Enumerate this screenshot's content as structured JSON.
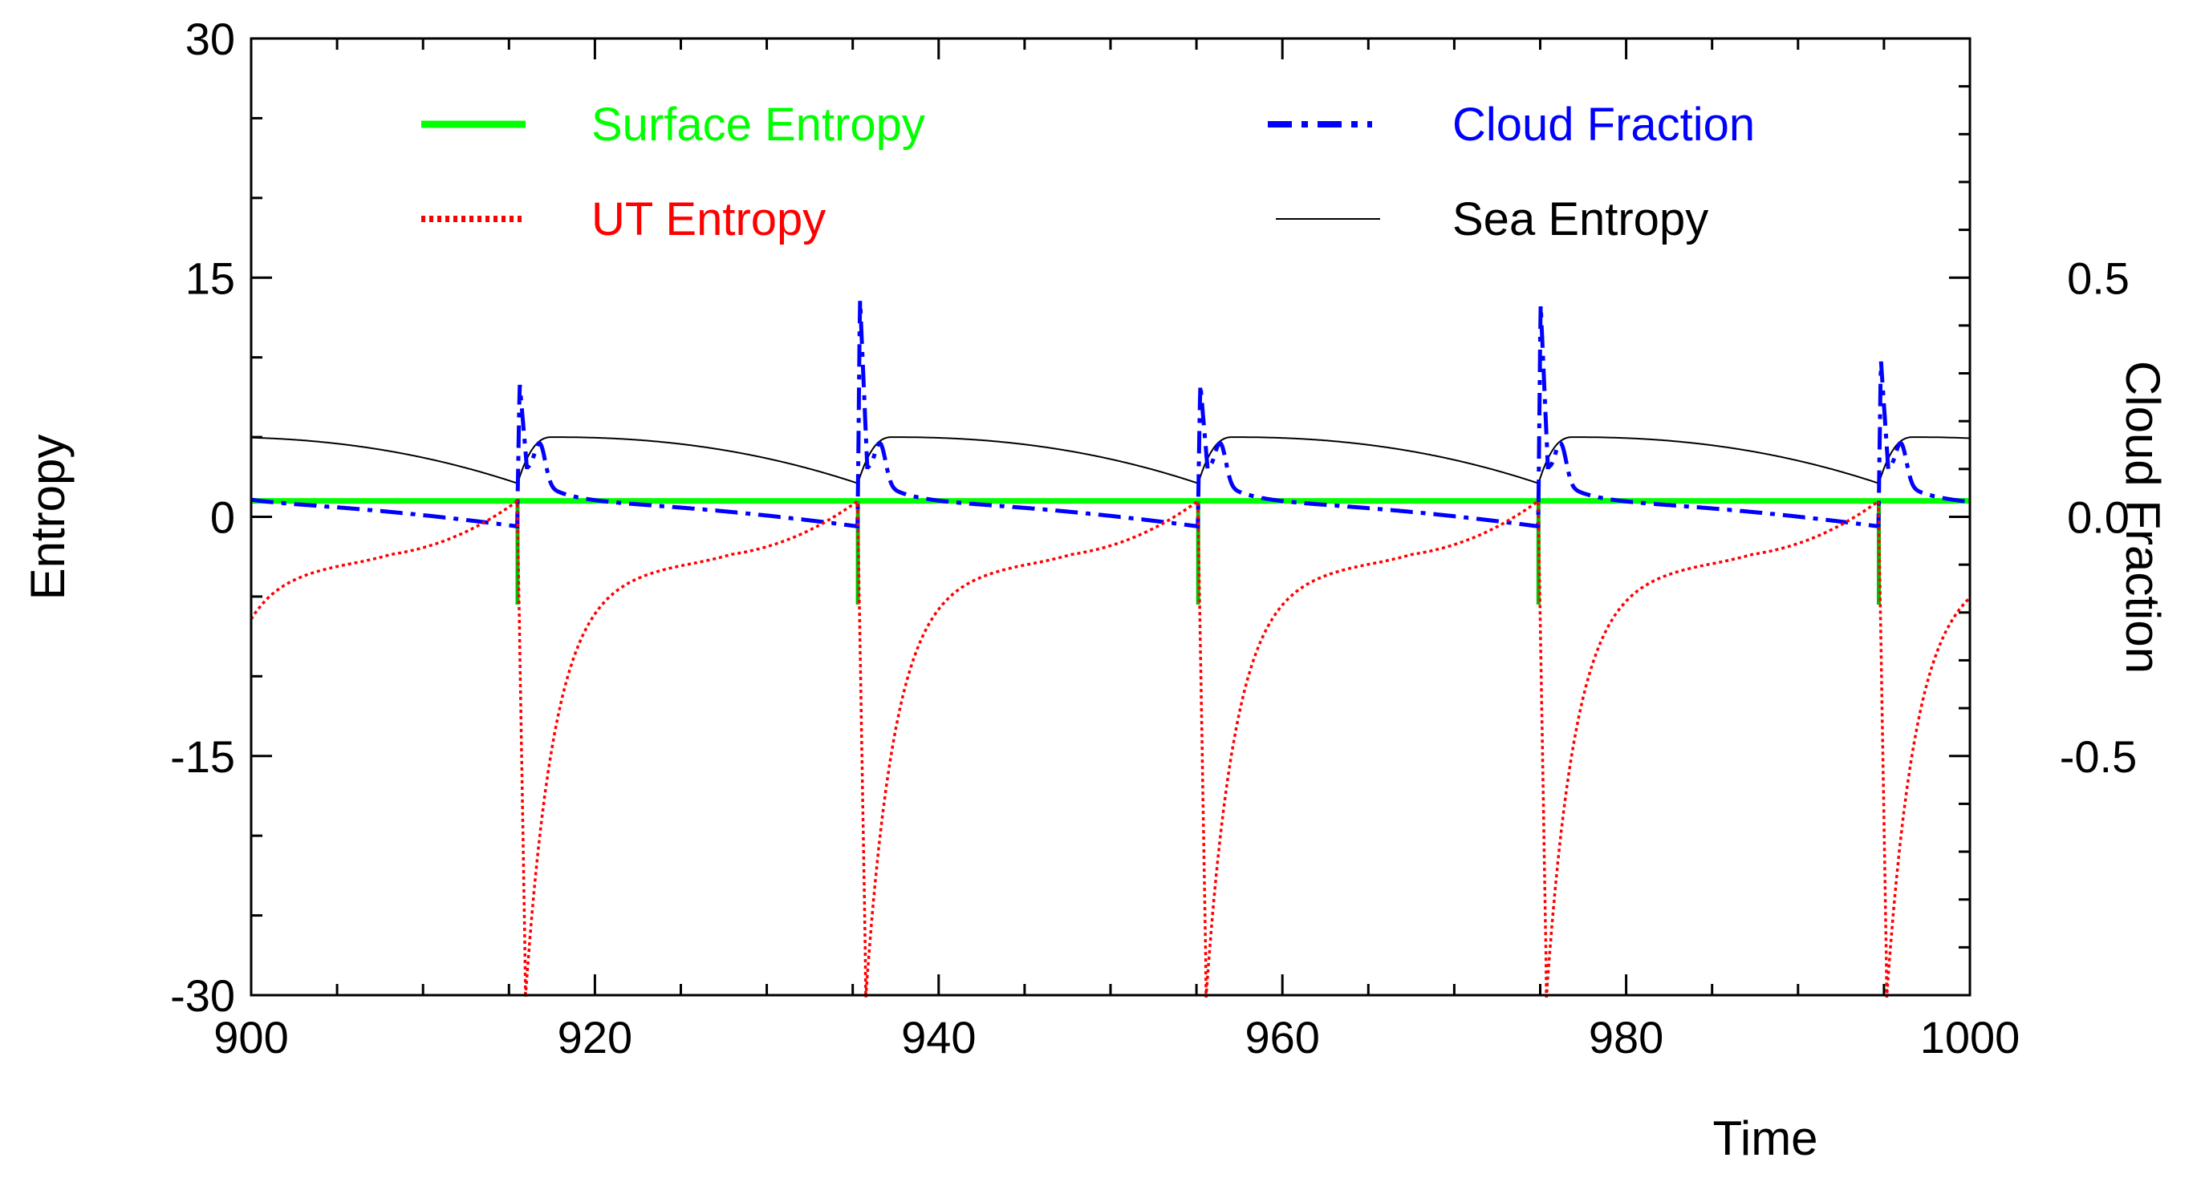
{
  "chart_data": {
    "type": "line",
    "title": "",
    "xlabel": "Time",
    "ylabel": "Entropy",
    "y2label": "Cloud Fraction",
    "xlim": [
      900,
      1000
    ],
    "ylim": [
      -30,
      30
    ],
    "y2lim": [
      -1.0,
      1.0
    ],
    "x_ticks": [
      "900",
      "920",
      "940",
      "960",
      "980",
      "1000"
    ],
    "y_ticks": [
      "30",
      "15",
      "0",
      "-15",
      "-30"
    ],
    "y2_ticks": [
      "0.5",
      "0.0",
      "-0.5"
    ],
    "legend_position": "top",
    "cycle": {
      "event_times": [
        915.5,
        935.3,
        955.1,
        974.9,
        994.7
      ],
      "period": 19.8
    },
    "series": [
      {
        "name": "Surface Entropy",
        "axis": "left",
        "style": "solid-thick",
        "color": "#00e000",
        "baseline": 1.0,
        "spike_min": -5.5
      },
      {
        "name": "UT Entropy",
        "axis": "left",
        "style": "dotted",
        "color": "#ff0000",
        "value_after_event": -28.5,
        "value_before_event": 1.0,
        "value_mid_cycle": -3.0
      },
      {
        "name": "Cloud Fraction",
        "axis": "right",
        "style": "dash-dot",
        "color": "#0000ff",
        "baseline": 0.03,
        "pre_event_min": -0.02,
        "peaks": [
          0.28,
          0.46,
          0.28,
          0.45,
          0.33
        ],
        "secondary_bump": 0.18
      },
      {
        "name": "Sea Entropy",
        "axis": "left",
        "style": "thin",
        "color": "#000000",
        "value_max": 5.0,
        "value_before_event": 2.1
      }
    ]
  },
  "legend": [
    {
      "label": "Surface Entropy",
      "color": "#00ff00"
    },
    {
      "label": "UT Entropy",
      "color": "#ff0000"
    },
    {
      "label": "Cloud Fraction",
      "color": "#0000ff"
    },
    {
      "label": "Sea Entropy",
      "color": "#000000"
    }
  ]
}
